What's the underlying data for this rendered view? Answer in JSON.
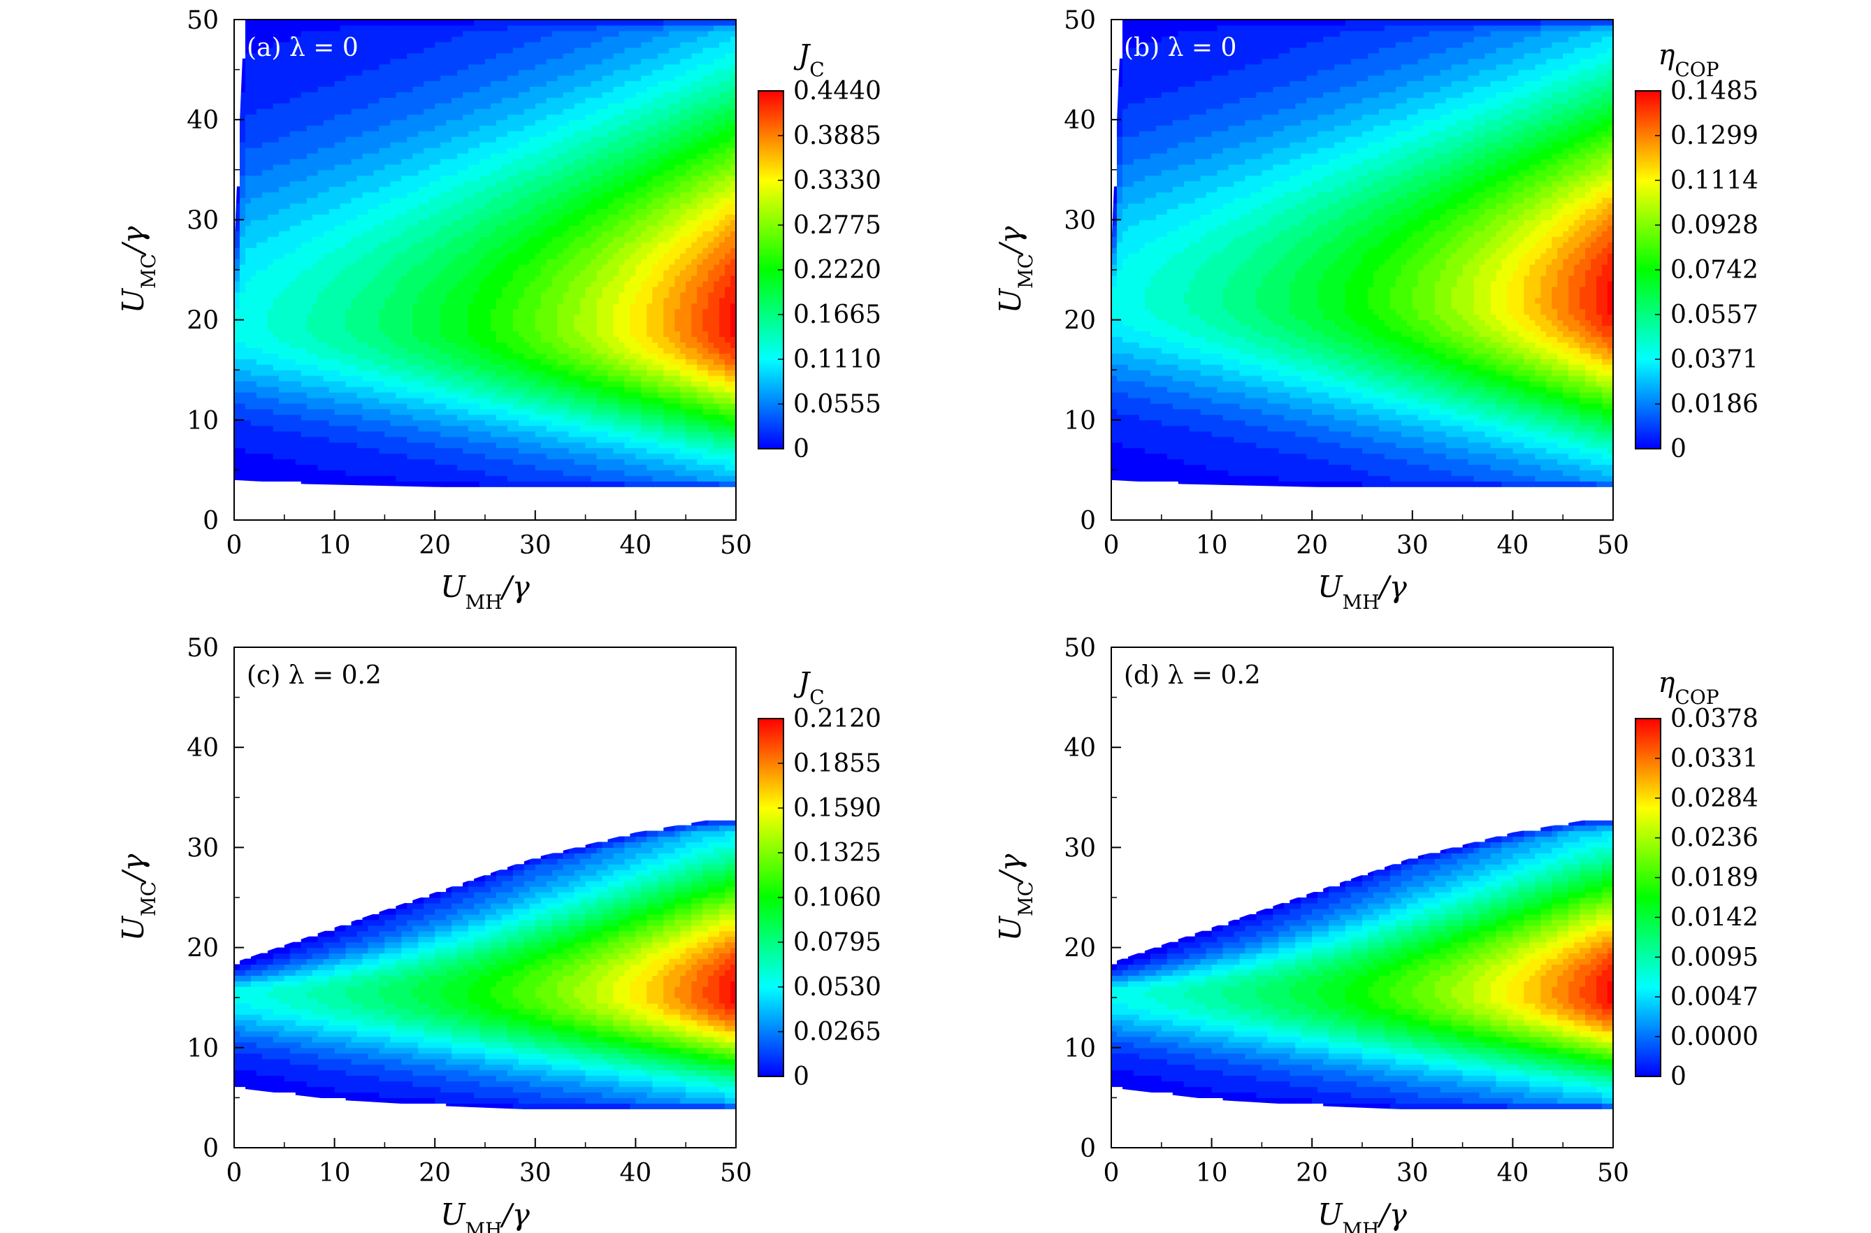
{
  "figure": {
    "panel_count": 4,
    "colormap": [
      "#0000ff",
      "#0080ff",
      "#00ffff",
      "#00ff80",
      "#00ff00",
      "#80ff00",
      "#ffff00",
      "#ff8000",
      "#ff0000"
    ]
  },
  "chart_data": [
    {
      "type": "heatmap",
      "panel_label": "(a) λ = 0",
      "xlabel": "U_MH/γ",
      "ylabel": "U_MC/γ",
      "xlim": [
        0,
        50
      ],
      "ylim": [
        0,
        50
      ],
      "x_ticks": [
        "0",
        "10",
        "20",
        "30",
        "40",
        "50"
      ],
      "y_ticks": [
        "0",
        "10",
        "20",
        "30",
        "40",
        "50"
      ],
      "colorbar_title": "J_C",
      "colorbar_ticks": [
        "0.4440",
        "0.3885",
        "0.3330",
        "0.2775",
        "0.2220",
        "0.1665",
        "0.1110",
        "0.0555",
        "0"
      ],
      "value_range": [
        0,
        0.444
      ],
      "peak": {
        "U_MH": 50,
        "U_MC": 19.5,
        "value": 0.444
      },
      "valid_region": {
        "lower_boundary": [
          [
            0,
            4
          ],
          [
            7,
            3.6
          ],
          [
            20,
            3.3
          ],
          [
            30,
            3.1
          ],
          [
            50,
            3.1
          ]
        ],
        "upper_boundary": [
          [
            0,
            27
          ],
          [
            1,
            50
          ],
          [
            50,
            50
          ]
        ]
      }
    },
    {
      "type": "heatmap",
      "panel_label": "(b) λ = 0",
      "xlabel": "U_MH/γ",
      "ylabel": "U_MC/γ",
      "xlim": [
        0,
        50
      ],
      "ylim": [
        0,
        50
      ],
      "x_ticks": [
        "0",
        "10",
        "20",
        "30",
        "40",
        "50"
      ],
      "y_ticks": [
        "0",
        "10",
        "20",
        "30",
        "40",
        "50"
      ],
      "colorbar_title": "η_COP",
      "colorbar_ticks": [
        "0.1485",
        "0.1299",
        "0.1114",
        "0.0928",
        "0.0742",
        "0.0557",
        "0.0371",
        "0.0186",
        "0"
      ],
      "value_range": [
        0,
        0.1485
      ],
      "peak": {
        "U_MH": 50,
        "U_MC": 22,
        "value": 0.1485
      },
      "valid_region": {
        "lower_boundary": [
          [
            0,
            4
          ],
          [
            7,
            3.6
          ],
          [
            20,
            3.3
          ],
          [
            30,
            3.1
          ],
          [
            50,
            3.1
          ]
        ],
        "upper_boundary": [
          [
            0,
            27
          ],
          [
            1,
            50
          ],
          [
            50,
            50
          ]
        ]
      }
    },
    {
      "type": "heatmap",
      "panel_label": "(c) λ = 0.2",
      "xlabel": "U_MH/γ",
      "ylabel": "U_MC/γ",
      "xlim": [
        0,
        50
      ],
      "ylim": [
        0,
        50
      ],
      "x_ticks": [
        "0",
        "10",
        "20",
        "30",
        "40",
        "50"
      ],
      "y_ticks": [
        "0",
        "10",
        "20",
        "30",
        "40",
        "50"
      ],
      "colorbar_title": "J_C",
      "colorbar_ticks": [
        "0.2120",
        "0.1855",
        "0.1590",
        "0.1325",
        "0.1060",
        "0.0795",
        "0.0530",
        "0.0265",
        "0"
      ],
      "value_range": [
        0,
        0.212
      ],
      "peak": {
        "U_MH": 50,
        "U_MC": 15.5,
        "value": 0.212
      },
      "valid_region": {
        "lower_boundary": [
          [
            0,
            6
          ],
          [
            10,
            4.8
          ],
          [
            20,
            4.2
          ],
          [
            30,
            3.8
          ],
          [
            40,
            3.7
          ],
          [
            50,
            3.7
          ]
        ],
        "upper_boundary": [
          [
            0,
            18.5
          ],
          [
            10,
            22
          ],
          [
            20,
            25.5
          ],
          [
            30,
            29
          ],
          [
            40,
            31.5
          ],
          [
            47,
            32.7
          ],
          [
            50,
            32.7
          ]
        ]
      }
    },
    {
      "type": "heatmap",
      "panel_label": "(d) λ = 0.2",
      "xlabel": "U_MH/γ",
      "ylabel": "U_MC/γ",
      "xlim": [
        0,
        50
      ],
      "ylim": [
        0,
        50
      ],
      "x_ticks": [
        "0",
        "10",
        "20",
        "30",
        "40",
        "50"
      ],
      "y_ticks": [
        "0",
        "10",
        "20",
        "30",
        "40",
        "50"
      ],
      "colorbar_title": "η_COP",
      "colorbar_ticks": [
        "0.0378",
        "0.0331",
        "0.0284",
        "0.0236",
        "0.0189",
        "0.0142",
        "0.0095",
        "0.0047",
        "0.0000",
        "0"
      ],
      "value_range": [
        0,
        0.0378
      ],
      "peak": {
        "U_MH": 50,
        "U_MC": 15.5,
        "value": 0.0378
      },
      "valid_region": {
        "lower_boundary": [
          [
            0,
            6
          ],
          [
            10,
            4.8
          ],
          [
            20,
            4.2
          ],
          [
            30,
            3.8
          ],
          [
            40,
            3.7
          ],
          [
            50,
            3.7
          ]
        ],
        "upper_boundary": [
          [
            0,
            18.5
          ],
          [
            10,
            22
          ],
          [
            20,
            25.5
          ],
          [
            30,
            29
          ],
          [
            40,
            31.5
          ],
          [
            47,
            32.7
          ],
          [
            50,
            32.7
          ]
        ]
      }
    }
  ]
}
